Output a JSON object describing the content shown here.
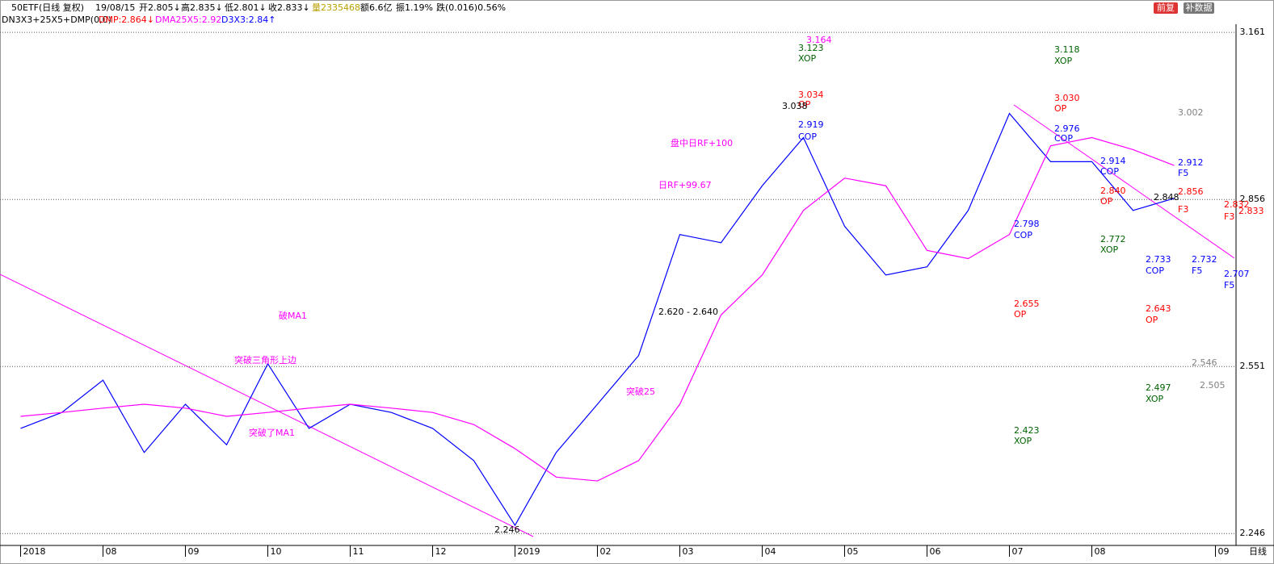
{
  "header": {
    "symbol": "50ETF(日线 复权)",
    "date": "19/08/15",
    "open": "开2.805↓",
    "high": "高2.835↓",
    "low": "低2.801↓",
    "close": "收2.833↓",
    "volume": "量2335468",
    "amount": "额6.6亿",
    "amplitude": "振1.19%",
    "change": "跌(0.016)0.56%",
    "indicator": "DN3X3+25X5+DMP(0,0)",
    "dmp": "DMP:2.864↓",
    "dma": "DMA25X5:2.92",
    "d3x3": "D3X3:2.84↑",
    "button_restore": "前复",
    "button_data": "补数据",
    "period": "日线"
  },
  "chart_data": {
    "type": "line",
    "categories": [
      "2018",
      null,
      "08",
      null,
      "09",
      null,
      "10",
      null,
      "11",
      null,
      "12",
      null,
      "2019",
      null,
      "02",
      null,
      "03",
      null,
      "04",
      null,
      "05",
      null,
      "06",
      null,
      "07",
      null,
      "08",
      null,
      null,
      "09"
    ],
    "series": [
      {
        "color": "#0000ff",
        "values": [
          2.438,
          2.467,
          2.526,
          2.394,
          2.482,
          2.408,
          2.556,
          2.438,
          2.482,
          2.467,
          2.438,
          2.379,
          2.261,
          2.394,
          2.482,
          2.571,
          2.792,
          2.777,
          2.881,
          2.969,
          2.807,
          2.718,
          2.733,
          2.836,
          3.013,
          2.925,
          2.925,
          2.836,
          2.858,
          null
        ]
      },
      {
        "color": "#ff00ff",
        "values": [
          2.46,
          2.467,
          2.475,
          2.482,
          2.475,
          2.46,
          2.467,
          2.475,
          2.482,
          2.475,
          2.467,
          2.445,
          2.401,
          2.349,
          2.342,
          2.379,
          2.482,
          2.645,
          2.718,
          2.836,
          2.895,
          2.881,
          2.763,
          2.748,
          2.792,
          2.954,
          2.969,
          2.947,
          2.918,
          null
        ]
      }
    ],
    "ylim": [
      2.236,
      3.176
    ],
    "yticks": [
      3.161,
      2.856,
      2.551,
      2.246
    ],
    "grid": true
  },
  "annotations": [
    {
      "text": "3.164",
      "color": "#ff00ff"
    },
    {
      "text": "3.123",
      "color": "#006400"
    },
    {
      "text": "XOP",
      "color": "#006400"
    },
    {
      "text": "3.034",
      "color": "#ff0000"
    },
    {
      "text": "OP",
      "color": "#ff0000"
    },
    {
      "text": "3.038",
      "color": "#000000"
    },
    {
      "text": "2.919",
      "color": "#0000ff"
    },
    {
      "text": "COP",
      "color": "#0000ff"
    },
    {
      "text": "盘中日RF+100",
      "color": "#ff00ff"
    },
    {
      "text": "日RF+99.67",
      "color": "#ff00ff"
    },
    {
      "text": "2.620 - 2.640",
      "color": "#000000"
    },
    {
      "text": "破MA1",
      "color": "#ff00ff"
    },
    {
      "text": "突破三角形上边",
      "color": "#ff00ff"
    },
    {
      "text": "突破了MA1",
      "color": "#ff00ff"
    },
    {
      "text": "突破25",
      "color": "#ff00ff"
    },
    {
      "text": "2.246",
      "color": "#000000"
    },
    {
      "text": "3.118",
      "color": "#006400"
    },
    {
      "text": "XOP",
      "color": "#006400"
    },
    {
      "text": "3.030",
      "color": "#ff0000"
    },
    {
      "text": "OP",
      "color": "#ff0000"
    },
    {
      "text": "2.976",
      "color": "#0000ff"
    },
    {
      "text": "COP",
      "color": "#0000ff"
    },
    {
      "text": "2.914",
      "color": "#0000ff"
    },
    {
      "text": "COP",
      "color": "#0000ff"
    },
    {
      "text": "2.840",
      "color": "#ff0000"
    },
    {
      "text": "OP",
      "color": "#ff0000"
    },
    {
      "text": "2.798",
      "color": "#0000ff"
    },
    {
      "text": "COP",
      "color": "#0000ff"
    },
    {
      "text": "2.772",
      "color": "#006400"
    },
    {
      "text": "XOP",
      "color": "#006400"
    },
    {
      "text": "2.655",
      "color": "#ff0000"
    },
    {
      "text": "OP",
      "color": "#ff0000"
    },
    {
      "text": "2.423",
      "color": "#006400"
    },
    {
      "text": "XOP",
      "color": "#006400"
    },
    {
      "text": "3.002",
      "color": "#808080"
    },
    {
      "text": "2.912",
      "color": "#0000ff"
    },
    {
      "text": "F5",
      "color": "#0000ff"
    },
    {
      "text": "2.856",
      "color": "#ff0000"
    },
    {
      "text": "F3",
      "color": "#ff0000"
    },
    {
      "text": "2.832",
      "color": "#ff0000"
    },
    {
      "text": "F3",
      "color": "#ff0000"
    },
    {
      "text": "2.733",
      "color": "#0000ff"
    },
    {
      "text": "COP",
      "color": "#0000ff"
    },
    {
      "text": "2.732",
      "color": "#0000ff"
    },
    {
      "text": "F5",
      "color": "#0000ff"
    },
    {
      "text": "2.707",
      "color": "#0000ff"
    },
    {
      "text": "F5",
      "color": "#0000ff"
    },
    {
      "text": "2.643",
      "color": "#ff0000"
    },
    {
      "text": "OP",
      "color": "#ff0000"
    },
    {
      "text": "2.546",
      "color": "#808080"
    },
    {
      "text": "2.505",
      "color": "#808080"
    },
    {
      "text": "2.497",
      "color": "#006400"
    },
    {
      "text": "XOP",
      "color": "#006400"
    },
    {
      "text": "2.848",
      "color": "#000000"
    },
    {
      "text": "2.833",
      "color": "#ff0000"
    }
  ]
}
